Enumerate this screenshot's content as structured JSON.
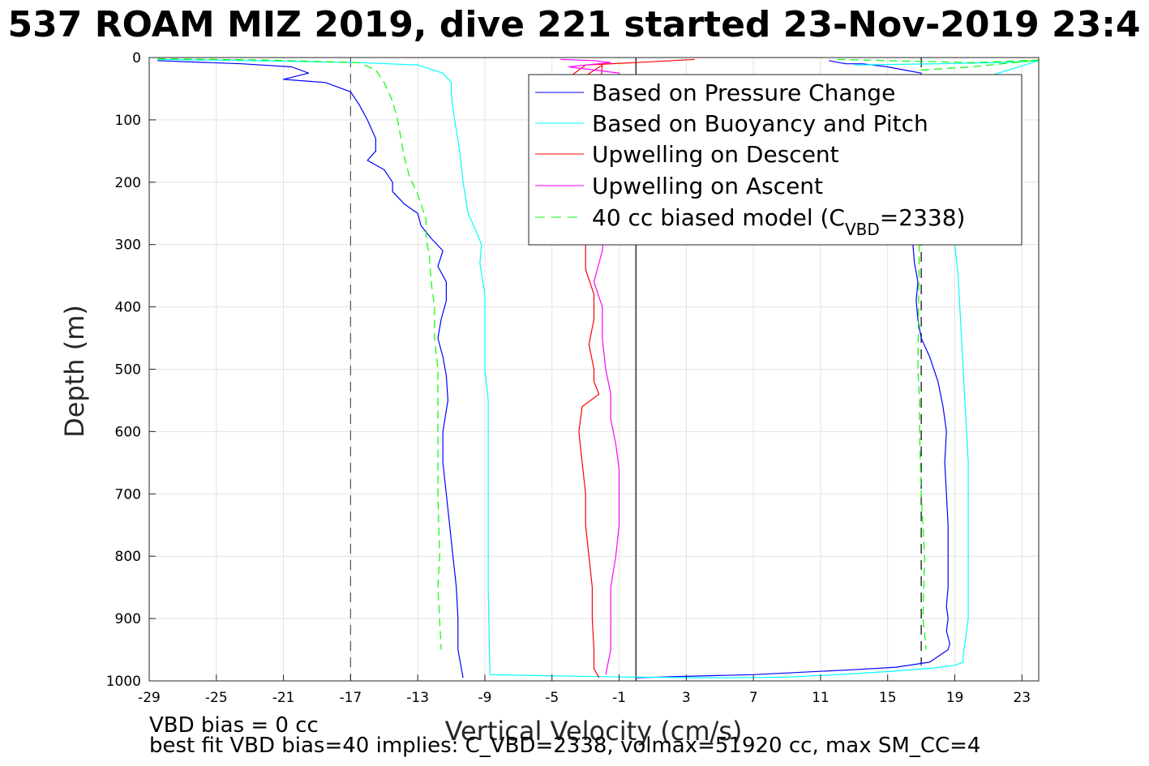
{
  "chart_data": {
    "type": "line",
    "title": "537 ROAM MIZ 2019, dive 221 started 23-Nov-2019 23:4",
    "xlabel": "Vertical Velocity (cm/s)",
    "ylabel": "Depth (m)",
    "xlim": [
      -29,
      24
    ],
    "ylim": [
      1000,
      0
    ],
    "y_reversed": true,
    "grid": true,
    "x_ticks": [
      -29,
      -25,
      -21,
      -17,
      -13,
      -9,
      -5,
      -1,
      3,
      7,
      11,
      15,
      19,
      23
    ],
    "y_ticks": [
      0,
      100,
      200,
      300,
      400,
      500,
      600,
      700,
      800,
      900,
      1000
    ],
    "legend_placement": "top-right",
    "reference_lines": [
      {
        "x": -17,
        "style": "dashed",
        "color": "#555555",
        "y_from": 0,
        "y_to": 1000
      },
      {
        "x": 17,
        "style": "dashed",
        "color": "#000000",
        "y_from": 0,
        "y_to": 975
      },
      {
        "x": 0,
        "style": "solid",
        "color": "#000000",
        "y_from": 0,
        "y_to": 1000
      }
    ],
    "series": [
      {
        "name": "Based on Pressure Change",
        "color": "#0000ff",
        "style": "solid",
        "segments": [
          {
            "x": [
              -28.5,
              -23.5,
              -20.5,
              -19.5,
              -21,
              -18.5,
              -17,
              -16.5,
              -16,
              -15.5,
              -15.5,
              -16,
              -15,
              -14.5,
              -14.5,
              -13.8,
              -13,
              -12.8,
              -12.2,
              -11.5,
              -11.8,
              -11.3,
              -11.3,
              -11.6,
              -11.8,
              -11.5,
              -11.3,
              -11.2,
              -11.5,
              -11.5,
              -11.3,
              -11.1,
              -10.9,
              -10.7,
              -10.6,
              -10.6,
              -10.3
            ],
            "y": [
              5,
              10,
              15,
              25,
              35,
              40,
              55,
              75,
              100,
              130,
              150,
              165,
              180,
              200,
              215,
              235,
              250,
              270,
              290,
              310,
              335,
              360,
              390,
              420,
              450,
              480,
              510,
              550,
              600,
              650,
              700,
              750,
              800,
              850,
              900,
              950,
              995
            ]
          },
          {
            "x": [
              11.5,
              12.5,
              13.5,
              15,
              16,
              17,
              16.8,
              16.5,
              16.6,
              16.8,
              16.7,
              16.8,
              17,
              17.5,
              18,
              18.3,
              18.5,
              18.4,
              18.5,
              18.6,
              18.6,
              18.6,
              18.5,
              18.6,
              18.5,
              18.7,
              18.6,
              17.5,
              15.5,
              13,
              10,
              7,
              2.5,
              0
            ],
            "y": [
              5,
              10,
              10,
              15,
              20,
              25,
              280,
              300,
              330,
              360,
              390,
              420,
              450,
              480,
              520,
              560,
              600,
              650,
              700,
              750,
              800,
              850,
              880,
              900,
              920,
              940,
              950,
              970,
              978,
              982,
              986,
              990,
              993,
              995
            ]
          }
        ]
      },
      {
        "name": "Based on Buoyancy and Pitch",
        "color": "#00ffff",
        "style": "solid",
        "segments": [
          {
            "x": [
              -28.5,
              -23,
              -16.5,
              -13,
              -11.5,
              -11,
              -11,
              -10.8,
              -10.5,
              -10.3,
              -10,
              -9.5,
              -9.2,
              -9.3,
              -9,
              -9,
              -9,
              -8.8,
              -8.8,
              -8.8,
              -8.8,
              -8.8,
              -8.8,
              -8.8,
              -8.7,
              -5,
              0,
              5,
              9
            ],
            "y": [
              3,
              5,
              8,
              12,
              25,
              40,
              60,
              100,
              150,
              200,
              250,
              280,
              300,
              330,
              380,
              450,
              500,
              550,
              600,
              650,
              700,
              750,
              800,
              850,
              990,
              992,
              994,
              995,
              994
            ]
          },
          {
            "x": [
              13,
              18,
              22,
              24,
              21,
              19.5,
              19,
              19,
              19.2,
              19.3,
              19.4,
              19.5,
              19.6,
              19.7,
              19.8,
              19.8,
              19.8,
              19.8,
              19.8,
              19.8,
              19.6,
              19.5,
              19.5,
              19,
              17.5,
              15,
              12,
              9
            ],
            "y": [
              12,
              10,
              8,
              5,
              30,
              200,
              250,
              300,
              350,
              400,
              450,
              500,
              550,
              600,
              650,
              700,
              750,
              800,
              850,
              900,
              940,
              960,
              970,
              975,
              980,
              985,
              990,
              994
            ]
          }
        ]
      },
      {
        "name": "Upwelling on Descent",
        "color": "#ff0000",
        "style": "solid",
        "segments": [
          {
            "x": [
              3.5,
              0,
              -3,
              -4,
              -3.5,
              -2,
              -3,
              -3,
              -2.5,
              -2.5,
              -2.8,
              -2.5,
              -2.5,
              -2.2,
              -3.2,
              -3.4,
              -3.2,
              -3,
              -3,
              -2.8,
              -2.6,
              -2.6,
              -2.5,
              -2.5,
              -2.2
            ],
            "y": [
              3,
              8,
              12,
              32,
              38,
              12,
              300,
              340,
              380,
              420,
              460,
              500,
              520,
              540,
              560,
              600,
              650,
              700,
              750,
              800,
              850,
              900,
              950,
              980,
              995
            ]
          }
        ]
      },
      {
        "name": "Upwelling on Ascent",
        "color": "#ff00ff",
        "style": "solid",
        "segments": [
          {
            "x": [
              -4.5,
              -2.5,
              -1.5,
              -3,
              -4,
              -2.5,
              -1,
              -2,
              -2.5,
              -2,
              -2,
              -1.8,
              -1.5,
              -1.5,
              -1.2,
              -1,
              -1,
              -1,
              -1.2,
              -1.5,
              -1.5,
              -1.5,
              -1.8
            ],
            "y": [
              3,
              5,
              8,
              12,
              15,
              20,
              25,
              310,
              360,
              400,
              450,
              500,
              540,
              580,
              620,
              660,
              700,
              750,
              800,
              850,
              900,
              950,
              990
            ]
          }
        ]
      },
      {
        "name": "40 cc biased model (C_VBD=2338)",
        "color": "#00ff00",
        "style": "dashed",
        "segments": [
          {
            "x": [
              -28.5,
              -22,
              -16.5,
              -15.5,
              -15,
              -14.5,
              -14.2,
              -14,
              -13.8,
              -13.5,
              -13,
              -12.5,
              -12.5,
              -12.3,
              -12.2,
              -12,
              -12,
              -11.8,
              -11.8,
              -11.8,
              -11.8,
              -11.7,
              -11.8,
              -11.7,
              -11.6
            ],
            "y": [
              2,
              4,
              8,
              20,
              40,
              70,
              100,
              130,
              160,
              190,
              220,
              260,
              290,
              320,
              360,
              400,
              450,
              500,
              550,
              600,
              700,
              800,
              850,
              900,
              950
            ]
          },
          {
            "x": [
              12,
              15,
              20,
              24,
              20,
              17,
              16.8,
              16.9,
              16.9,
              17,
              17.2,
              17.1,
              17.3
            ],
            "y": [
              3,
              5,
              8,
              4,
              15,
              20,
              500,
              550,
              600,
              700,
              800,
              900,
              950
            ]
          }
        ]
      }
    ]
  },
  "legend": {
    "entries": [
      "Based on Pressure Change",
      "Based on Buoyancy and Pitch",
      "Upwelling on Descent",
      "Upwelling on Ascent"
    ],
    "model_prefix": "40 cc biased model (C",
    "model_sub": "VBD",
    "model_suffix": "=2338)"
  },
  "footer": {
    "line1": "VBD bias = 0 cc",
    "line2": "best fit VBD bias=40 implies: C_VBD=2338, volmax=51920 cc, max SM_CC=4"
  }
}
